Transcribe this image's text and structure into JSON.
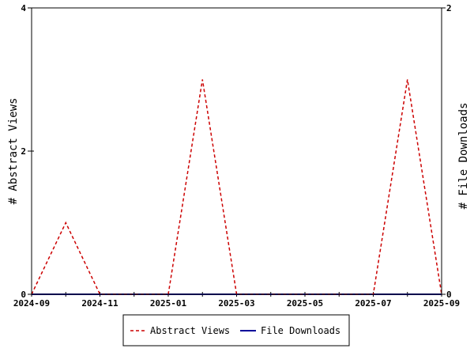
{
  "chart_data": {
    "type": "line",
    "x": [
      "2024-09",
      "2024-10",
      "2024-11",
      "2024-12",
      "2025-01",
      "2025-02",
      "2025-03",
      "2025-04",
      "2025-05",
      "2025-06",
      "2025-07",
      "2025-08",
      "2025-09"
    ],
    "x_ticks": [
      "2024-09",
      "2024-11",
      "2025-01",
      "2025-03",
      "2025-05",
      "2025-07",
      "2025-09"
    ],
    "series": [
      {
        "name": "Abstract Views",
        "axis": "left",
        "color": "#cc0000",
        "style": "dashed",
        "values": [
          0,
          1,
          0,
          0,
          0,
          3,
          0,
          0,
          0,
          0,
          0,
          3,
          0
        ]
      },
      {
        "name": "File Downloads",
        "axis": "right",
        "color": "#000099",
        "style": "solid",
        "values": [
          0,
          0,
          0,
          0,
          0,
          0,
          0,
          0,
          0,
          0,
          0,
          0,
          0
        ]
      }
    ],
    "ylabel": "# Abstract Views",
    "ylabel_right": "# File Downloads",
    "ylim": [
      0,
      4
    ],
    "yticks": [
      "0",
      "2",
      "4"
    ],
    "ylim_right": [
      0,
      2
    ],
    "yticks_right": [
      "0",
      "2"
    ],
    "legend_position": "bottom-center",
    "grid": false
  }
}
